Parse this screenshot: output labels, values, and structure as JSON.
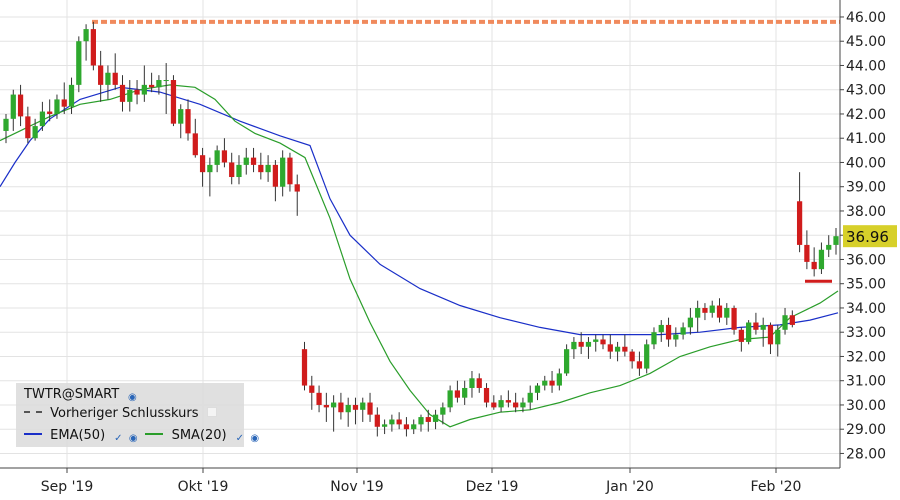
{
  "colors": {
    "up": "#2ea82e",
    "down": "#d01c1c",
    "ema": "#1a2fc8",
    "sma": "#2a9d2a",
    "prev_close": "#f08a5d",
    "last_badge": "#d7d02a",
    "grid": "#e3e3e3"
  },
  "legend": {
    "symbol": "TWTR@SMART",
    "prev_close_label": "Vorheriger Schlusskurs",
    "ema_label": "EMA(50)",
    "sma_label": "SMA(20)",
    "info_icon": "globe-icon",
    "check_icon": "check-icon"
  },
  "chart_data": {
    "type": "candlestick",
    "x_labels": [
      "Sep '19",
      "Okt '19",
      "Nov '19",
      "Dez '19",
      "Jan '20",
      "Feb '20"
    ],
    "y_ticks": [
      "28.00",
      "29.00",
      "30.00",
      "31.00",
      "32.00",
      "33.00",
      "34.00",
      "35.00",
      "36.00",
      "37.00",
      "38.00",
      "39.00",
      "40.00",
      "41.00",
      "42.00",
      "43.00",
      "44.00",
      "45.00",
      "46.00"
    ],
    "ylim": [
      27.4,
      46.7
    ],
    "grid": true,
    "last_price": "36.96",
    "prev_close_level": 45.8,
    "red_marker_level": 35.1,
    "candles": [
      [
        41.3,
        42.0,
        40.8,
        41.8
      ],
      [
        41.8,
        43.0,
        41.3,
        42.8
      ],
      [
        42.8,
        43.2,
        41.5,
        41.9
      ],
      [
        41.9,
        42.3,
        40.8,
        41.0
      ],
      [
        41.0,
        41.8,
        40.9,
        41.5
      ],
      [
        41.5,
        42.5,
        41.3,
        42.1
      ],
      [
        42.1,
        42.6,
        41.7,
        42.0
      ],
      [
        42.0,
        42.8,
        41.8,
        42.6
      ],
      [
        42.6,
        43.3,
        42.0,
        42.3
      ],
      [
        42.3,
        43.5,
        42.0,
        43.2
      ],
      [
        43.2,
        45.2,
        42.9,
        45.0
      ],
      [
        45.0,
        45.7,
        44.2,
        45.5
      ],
      [
        45.5,
        45.8,
        43.8,
        44.0
      ],
      [
        44.0,
        44.6,
        42.5,
        43.2
      ],
      [
        43.2,
        44.0,
        42.6,
        43.7
      ],
      [
        43.7,
        44.5,
        43.0,
        43.2
      ],
      [
        43.2,
        43.6,
        42.1,
        42.5
      ],
      [
        42.5,
        43.4,
        42.1,
        43.0
      ],
      [
        43.0,
        43.4,
        42.4,
        42.8
      ],
      [
        42.8,
        44.0,
        42.5,
        43.2
      ],
      [
        43.2,
        43.7,
        42.9,
        43.1
      ],
      [
        43.1,
        43.6,
        42.8,
        43.4
      ],
      [
        43.4,
        44.1,
        42.0,
        43.4
      ],
      [
        43.4,
        43.6,
        41.5,
        41.6
      ],
      [
        41.6,
        42.4,
        41.0,
        42.2
      ],
      [
        42.2,
        42.6,
        40.9,
        41.2
      ],
      [
        41.2,
        41.8,
        40.2,
        40.3
      ],
      [
        40.3,
        40.6,
        39.0,
        39.6
      ],
      [
        39.6,
        40.2,
        38.6,
        39.9
      ],
      [
        39.9,
        40.7,
        39.6,
        40.5
      ],
      [
        40.5,
        41.0,
        39.8,
        40.0
      ],
      [
        40.0,
        40.4,
        39.1,
        39.4
      ],
      [
        39.4,
        40.3,
        39.1,
        39.9
      ],
      [
        39.9,
        40.6,
        39.5,
        40.2
      ],
      [
        40.2,
        40.6,
        39.6,
        39.9
      ],
      [
        39.9,
        40.4,
        39.3,
        39.6
      ],
      [
        39.6,
        40.3,
        39.2,
        39.9
      ],
      [
        39.9,
        40.1,
        38.4,
        39.0
      ],
      [
        39.0,
        40.5,
        38.6,
        40.2
      ],
      [
        40.2,
        40.4,
        38.8,
        39.1
      ],
      [
        39.1,
        39.5,
        37.8,
        38.8
      ],
      [
        32.3,
        32.6,
        30.6,
        30.8
      ],
      [
        30.8,
        31.2,
        29.8,
        30.5
      ],
      [
        30.5,
        30.8,
        29.7,
        30.0
      ],
      [
        30.0,
        30.5,
        29.3,
        29.9
      ],
      [
        29.9,
        30.4,
        28.9,
        30.1
      ],
      [
        30.1,
        30.5,
        29.4,
        29.7
      ],
      [
        29.7,
        30.3,
        29.1,
        30.0
      ],
      [
        30.0,
        30.3,
        29.2,
        29.8
      ],
      [
        29.8,
        30.3,
        29.3,
        30.1
      ],
      [
        30.1,
        30.5,
        29.3,
        29.6
      ],
      [
        29.6,
        29.9,
        28.7,
        29.1
      ],
      [
        29.1,
        29.4,
        28.8,
        29.2
      ],
      [
        29.2,
        29.6,
        28.9,
        29.4
      ],
      [
        29.4,
        29.7,
        29.0,
        29.2
      ],
      [
        29.2,
        29.5,
        28.7,
        29.0
      ],
      [
        29.0,
        29.4,
        28.8,
        29.2
      ],
      [
        29.2,
        29.6,
        28.9,
        29.5
      ],
      [
        29.5,
        29.8,
        28.9,
        29.3
      ],
      [
        29.3,
        29.8,
        29.0,
        29.6
      ],
      [
        29.6,
        30.1,
        29.2,
        29.9
      ],
      [
        29.9,
        30.8,
        29.7,
        30.6
      ],
      [
        30.6,
        31.0,
        30.1,
        30.3
      ],
      [
        30.3,
        31.0,
        30.0,
        30.7
      ],
      [
        30.7,
        31.4,
        30.3,
        31.1
      ],
      [
        31.1,
        31.3,
        30.5,
        30.7
      ],
      [
        30.7,
        30.9,
        29.9,
        30.1
      ],
      [
        30.1,
        30.4,
        29.8,
        29.9
      ],
      [
        29.9,
        30.4,
        29.7,
        30.2
      ],
      [
        30.2,
        30.6,
        29.9,
        30.1
      ],
      [
        30.1,
        30.5,
        29.7,
        29.9
      ],
      [
        29.9,
        30.3,
        29.7,
        30.1
      ],
      [
        30.1,
        30.8,
        29.8,
        30.5
      ],
      [
        30.5,
        30.9,
        30.2,
        30.8
      ],
      [
        30.8,
        31.2,
        30.6,
        31.0
      ],
      [
        31.0,
        31.4,
        30.5,
        30.8
      ],
      [
        30.8,
        31.5,
        30.6,
        31.3
      ],
      [
        31.3,
        32.5,
        31.2,
        32.3
      ],
      [
        32.3,
        32.8,
        31.9,
        32.6
      ],
      [
        32.6,
        33.0,
        32.1,
        32.4
      ],
      [
        32.4,
        32.8,
        31.9,
        32.6
      ],
      [
        32.6,
        32.9,
        32.2,
        32.7
      ],
      [
        32.7,
        32.9,
        32.3,
        32.5
      ],
      [
        32.5,
        32.9,
        31.9,
        32.2
      ],
      [
        32.2,
        32.6,
        31.8,
        32.4
      ],
      [
        32.4,
        32.9,
        32.0,
        32.2
      ],
      [
        32.2,
        32.3,
        31.5,
        31.8
      ],
      [
        31.8,
        32.2,
        31.2,
        31.5
      ],
      [
        31.5,
        32.7,
        31.3,
        32.5
      ],
      [
        32.5,
        33.2,
        32.3,
        33.0
      ],
      [
        33.0,
        33.5,
        32.6,
        33.3
      ],
      [
        33.3,
        33.6,
        32.4,
        32.7
      ],
      [
        32.7,
        33.2,
        32.4,
        32.9
      ],
      [
        32.9,
        33.4,
        32.7,
        33.2
      ],
      [
        33.2,
        34.0,
        32.9,
        33.6
      ],
      [
        33.6,
        34.3,
        33.0,
        34.0
      ],
      [
        34.0,
        34.2,
        33.5,
        33.8
      ],
      [
        33.8,
        34.3,
        33.6,
        34.1
      ],
      [
        34.1,
        34.4,
        33.4,
        33.6
      ],
      [
        33.6,
        34.2,
        33.3,
        34.0
      ],
      [
        34.0,
        34.1,
        32.9,
        33.1
      ],
      [
        33.1,
        33.2,
        32.2,
        32.6
      ],
      [
        32.6,
        33.5,
        32.5,
        33.4
      ],
      [
        33.4,
        33.8,
        32.9,
        33.1
      ],
      [
        33.1,
        33.6,
        32.4,
        33.3
      ],
      [
        33.3,
        33.4,
        32.1,
        32.5
      ],
      [
        32.5,
        33.3,
        32.0,
        33.1
      ],
      [
        33.1,
        34.0,
        32.9,
        33.7
      ],
      [
        33.7,
        33.9,
        33.2,
        33.3
      ],
      [
        38.4,
        39.6,
        36.3,
        36.6
      ],
      [
        36.6,
        37.2,
        35.6,
        35.9
      ],
      [
        35.9,
        36.5,
        35.3,
        35.6
      ],
      [
        35.6,
        36.7,
        35.4,
        36.4
      ],
      [
        36.4,
        37.0,
        36.1,
        36.6
      ],
      [
        36.6,
        37.3,
        36.2,
        36.96
      ]
    ],
    "ema50": [
      [
        0,
        39.0
      ],
      [
        15,
        40.0
      ],
      [
        30,
        40.9
      ],
      [
        50,
        41.8
      ],
      [
        80,
        42.6
      ],
      [
        120,
        43.1
      ],
      [
        160,
        42.9
      ],
      [
        200,
        42.4
      ],
      [
        240,
        41.7
      ],
      [
        280,
        41.1
      ],
      [
        310,
        40.7
      ],
      [
        330,
        38.5
      ],
      [
        350,
        37.0
      ],
      [
        380,
        35.8
      ],
      [
        420,
        34.8
      ],
      [
        460,
        34.1
      ],
      [
        500,
        33.6
      ],
      [
        540,
        33.2
      ],
      [
        580,
        32.9
      ],
      [
        620,
        32.9
      ],
      [
        660,
        32.9
      ],
      [
        700,
        33.0
      ],
      [
        740,
        33.2
      ],
      [
        780,
        33.3
      ],
      [
        810,
        33.5
      ],
      [
        838,
        33.8
      ]
    ],
    "sma20": [
      [
        0,
        40.9
      ],
      [
        20,
        41.3
      ],
      [
        50,
        41.9
      ],
      [
        80,
        42.4
      ],
      [
        110,
        42.6
      ],
      [
        140,
        43.0
      ],
      [
        170,
        43.2
      ],
      [
        195,
        43.1
      ],
      [
        215,
        42.6
      ],
      [
        235,
        41.7
      ],
      [
        255,
        41.2
      ],
      [
        280,
        40.8
      ],
      [
        305,
        40.2
      ],
      [
        330,
        37.7
      ],
      [
        350,
        35.2
      ],
      [
        370,
        33.4
      ],
      [
        390,
        31.8
      ],
      [
        410,
        30.6
      ],
      [
        430,
        29.6
      ],
      [
        450,
        29.1
      ],
      [
        470,
        29.4
      ],
      [
        500,
        29.7
      ],
      [
        530,
        29.8
      ],
      [
        560,
        30.1
      ],
      [
        590,
        30.5
      ],
      [
        620,
        30.8
      ],
      [
        650,
        31.3
      ],
      [
        680,
        32.0
      ],
      [
        710,
        32.4
      ],
      [
        740,
        32.7
      ],
      [
        770,
        32.8
      ],
      [
        790,
        33.6
      ],
      [
        820,
        34.2
      ],
      [
        838,
        34.7
      ]
    ]
  }
}
